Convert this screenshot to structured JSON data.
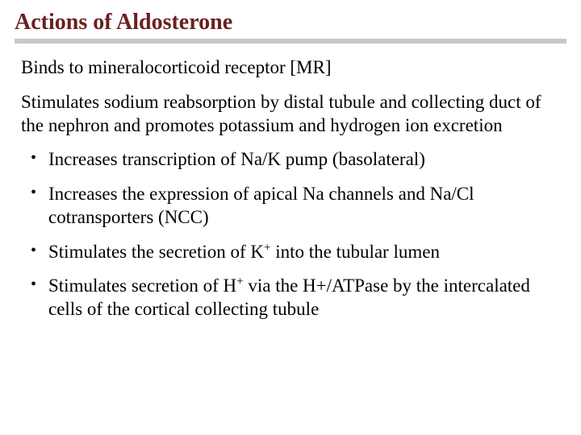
{
  "colors": {
    "title_color": "#6b1f1f",
    "rule_color": "#c9c9c9",
    "text_color": "#000000",
    "background": "#ffffff"
  },
  "typography": {
    "title_fontsize": 28,
    "body_fontsize": 23,
    "font_family": "Georgia, Times New Roman, serif"
  },
  "title": "Actions of Aldosterone",
  "paragraphs": [
    "Binds to mineralocorticoid receptor [MR]",
    "Stimulates sodium reabsorption by distal tubule and collecting duct of the nephron  and promotes potassium and hydrogen ion excretion"
  ],
  "bullets": [
    {
      "html": "Increases transcription of Na/K pump (basolateral)"
    },
    {
      "html": "Increases the expression of apical Na channels and Na/Cl cotransporters (NCC)"
    },
    {
      "html": "Stimulates the secretion of K<sup>+</sup> into the tubular lumen"
    },
    {
      "html": "Stimulates secretion of H<sup>+</sup> via the H+/ATPase by the intercalated cells of the cortical collecting tubule"
    }
  ]
}
